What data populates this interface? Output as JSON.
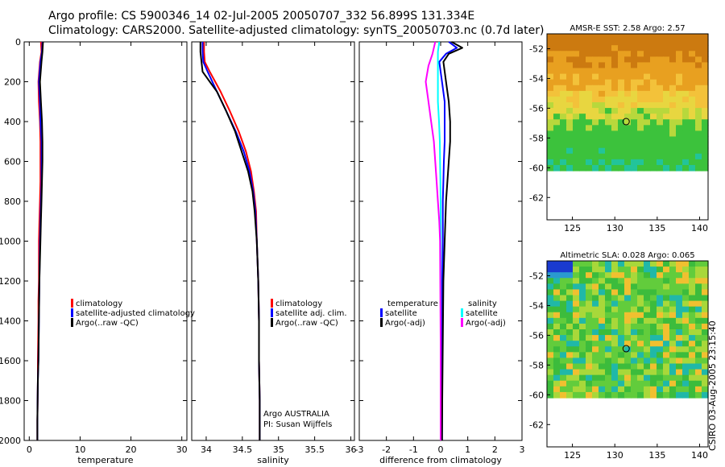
{
  "header": {
    "line1": "Argo profile: CS 5900346_14 02-Jul-2005 20050707_332 56.899S 131.334E",
    "line2": "Climatology: CARS2000. Satellite-adjusted climatology: synTS_20050703.nc (0.7d later)"
  },
  "credit": "CSIRO 03-Aug-2005 23:15:40",
  "colors": {
    "red": "#ff0000",
    "blue": "#0000ff",
    "black": "#000000",
    "cyan": "#00ffff",
    "magenta": "#ff00ff"
  },
  "chart_data": [
    {
      "type": "line",
      "xlabel": "temperature",
      "ylabel": "",
      "xlim": [
        -1,
        31
      ],
      "ylim": [
        2000,
        0
      ],
      "xticks": [
        0,
        10,
        20,
        30
      ],
      "yticks": [
        0,
        200,
        400,
        600,
        800,
        1000,
        1200,
        1400,
        1600,
        1800,
        2000
      ],
      "legend": [
        "climatology",
        "satellite-adjusted climatology",
        "Argo(..raw -QC)"
      ],
      "series": [
        {
          "name": "climatology",
          "color": "#ff0000",
          "x": [
            2.3,
            2.4,
            2.1,
            1.8,
            1.9,
            2.1,
            2.2,
            2.2,
            2.2,
            2.1,
            2.0,
            1.9,
            1.9,
            1.8,
            1.8,
            1.7,
            1.7,
            1.6,
            1.6
          ],
          "y": [
            0,
            50,
            100,
            200,
            300,
            400,
            500,
            600,
            700,
            800,
            900,
            1000,
            1200,
            1300,
            1400,
            1600,
            1700,
            1900,
            2000
          ]
        },
        {
          "name": "satellite-adjusted climatology",
          "color": "#0000ff",
          "x": [
            2.6,
            2.5,
            2.2,
            1.9,
            2.1,
            2.2,
            2.4,
            2.4,
            2.4,
            2.3,
            2.2,
            2.1,
            2.0,
            1.9,
            1.8,
            1.7,
            1.6,
            1.6
          ],
          "y": [
            0,
            50,
            100,
            200,
            300,
            400,
            500,
            600,
            700,
            800,
            900,
            1000,
            1200,
            1400,
            1600,
            1700,
            1900,
            2000
          ]
        },
        {
          "name": "Argo(..raw -QC)",
          "color": "#000000",
          "x": [
            2.7,
            2.6,
            2.4,
            2.1,
            2.3,
            2.5,
            2.6,
            2.6,
            2.5,
            2.4,
            2.3,
            2.2,
            2.0,
            1.9,
            1.8,
            1.7,
            1.6,
            1.6
          ],
          "y": [
            0,
            50,
            100,
            200,
            300,
            400,
            500,
            600,
            700,
            800,
            900,
            1000,
            1200,
            1400,
            1600,
            1700,
            1900,
            2000
          ]
        }
      ]
    },
    {
      "type": "line",
      "xlabel": "salinity",
      "xlim": [
        33.8,
        36.05
      ],
      "ylim": [
        2000,
        0
      ],
      "xticks": [
        34,
        34.5,
        35,
        35.5,
        36
      ],
      "yticks": [
        0,
        200,
        400,
        600,
        800,
        1000,
        1200,
        1400,
        1600,
        1800,
        2000
      ],
      "legend": [
        "climatology",
        "satellite adj. clim.",
        "Argo(..raw -QC)"
      ],
      "annotation": [
        "Argo AUSTRALIA",
        "PI: Susan Wijffels"
      ],
      "series": [
        {
          "name": "climatology",
          "color": "#ff0000",
          "x": [
            33.97,
            33.97,
            33.98,
            34.05,
            34.2,
            34.33,
            34.45,
            34.55,
            34.62,
            34.66,
            34.69,
            34.7,
            34.72,
            34.73,
            34.73,
            34.74,
            34.74
          ],
          "y": [
            0,
            50,
            100,
            150,
            250,
            350,
            450,
            550,
            650,
            750,
            850,
            1000,
            1200,
            1400,
            1600,
            1800,
            2000
          ]
        },
        {
          "name": "satellite adj. clim.",
          "color": "#0000ff",
          "x": [
            33.95,
            33.95,
            33.96,
            34.02,
            34.15,
            34.28,
            34.41,
            34.52,
            34.6,
            34.65,
            34.68,
            34.7,
            34.72,
            34.73,
            34.73,
            34.74,
            34.74
          ],
          "y": [
            0,
            50,
            100,
            150,
            250,
            350,
            450,
            550,
            650,
            750,
            850,
            1000,
            1200,
            1400,
            1600,
            1800,
            2000
          ]
        },
        {
          "name": "Argo(..raw -QC)",
          "color": "#000000",
          "x": [
            33.92,
            33.92,
            33.95,
            34.05,
            34.15,
            34.28,
            34.4,
            34.49,
            34.58,
            34.64,
            34.67,
            34.7,
            34.72,
            34.73,
            34.73,
            34.74,
            34.74
          ],
          "y": [
            0,
            50,
            150,
            200,
            250,
            350,
            450,
            550,
            650,
            750,
            850,
            1000,
            1200,
            1400,
            1600,
            1800,
            2000
          ]
        }
      ]
    },
    {
      "type": "line",
      "xlabel": "difference from climatology",
      "xlim": [
        -3,
        3
      ],
      "ylim": [
        2000,
        0
      ],
      "xticks": [
        -3,
        -2,
        -1,
        0,
        1,
        2,
        3
      ],
      "yticks": [
        0,
        200,
        400,
        600,
        800,
        1000,
        1200,
        1400,
        1600,
        1800,
        2000
      ],
      "legend_temperature": {
        "header": "temperature",
        "items": [
          "satellite",
          "Argo(-adj)"
        ]
      },
      "legend_salinity": {
        "header": "salinity",
        "items": [
          "satellite",
          "Argo(-adj)"
        ]
      },
      "series": [
        {
          "name": "temperature satellite",
          "color": "#0000ff",
          "x": [
            0.3,
            0.6,
            0.2,
            -0.05,
            0.05,
            0.15,
            0.15,
            0.15,
            0.12,
            0.1,
            0.08,
            0.08,
            0.06,
            0.05,
            0.05,
            0.05
          ],
          "y": [
            0,
            30,
            60,
            100,
            200,
            300,
            400,
            500,
            600,
            700,
            800,
            1000,
            1200,
            1500,
            1800,
            2000
          ]
        },
        {
          "name": "temperature Argo(-adj)",
          "color": "#000000",
          "x": [
            0.4,
            0.8,
            0.3,
            0.1,
            0.2,
            0.3,
            0.35,
            0.35,
            0.3,
            0.25,
            0.2,
            0.15,
            0.1,
            0.08,
            0.06,
            0.05
          ],
          "y": [
            0,
            30,
            60,
            100,
            200,
            300,
            400,
            500,
            600,
            700,
            800,
            1000,
            1200,
            1500,
            1800,
            2000
          ]
        },
        {
          "name": "salinity satellite",
          "color": "#00ffff",
          "x": [
            -0.05,
            -0.1,
            -0.1,
            -0.1,
            -0.1,
            -0.06,
            -0.03,
            -0.02,
            -0.01,
            0,
            0,
            0,
            0
          ],
          "y": [
            0,
            50,
            100,
            200,
            300,
            400,
            500,
            600,
            700,
            800,
            1000,
            1500,
            2000
          ]
        },
        {
          "name": "salinity Argo(-adj)",
          "color": "#ff00ff",
          "x": [
            -0.2,
            -0.3,
            -0.45,
            -0.55,
            -0.45,
            -0.35,
            -0.25,
            -0.2,
            -0.15,
            -0.1,
            -0.05,
            -0.02,
            0,
            0
          ],
          "y": [
            0,
            60,
            120,
            200,
            300,
            400,
            500,
            600,
            700,
            800,
            900,
            1000,
            1500,
            2000
          ]
        }
      ]
    },
    {
      "type": "heatmap",
      "title": "AMSR-E SST: 2.58 Argo: 2.57",
      "xlim": [
        122,
        141
      ],
      "ylim": [
        -63.5,
        -51
      ],
      "xticks": [
        125,
        130,
        135,
        140
      ],
      "yticks": [
        -52,
        -54,
        -56,
        -58,
        -60,
        -62
      ],
      "data_ylim": [
        -60.2,
        -51
      ],
      "marker": {
        "lon": 131.334,
        "lat": -56.899
      }
    },
    {
      "type": "heatmap",
      "title": "Altimetric SLA: 0.028 Argo: 0.065",
      "xlim": [
        122,
        141
      ],
      "ylim": [
        -63.5,
        -51
      ],
      "xticks": [
        125,
        130,
        135,
        140
      ],
      "yticks": [
        -52,
        -54,
        -56,
        -58,
        -60,
        -62
      ],
      "data_ylim": [
        -60.2,
        -51
      ],
      "marker": {
        "lon": 131.334,
        "lat": -56.899
      }
    }
  ]
}
